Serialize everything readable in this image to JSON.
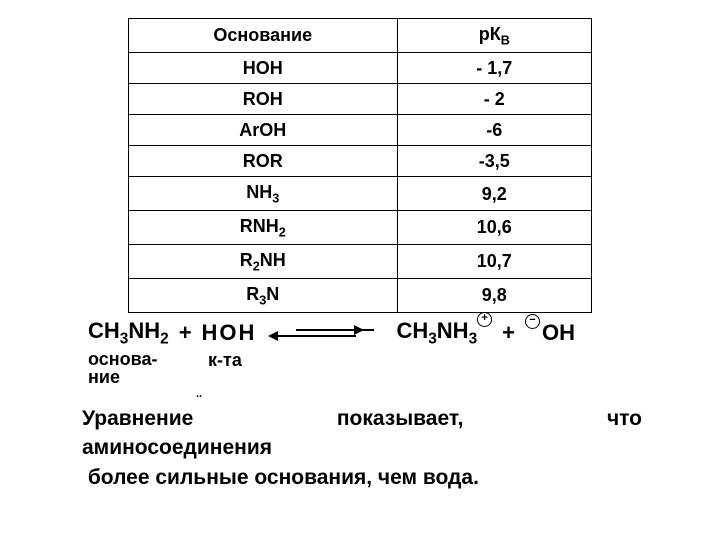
{
  "table": {
    "columns": [
      "Основание",
      "рКВ"
    ],
    "rows": [
      [
        "HOH",
        "- 1,7"
      ],
      [
        "ROH",
        "- 2"
      ],
      [
        "ArOH",
        "-6"
      ],
      [
        "ROR",
        "-3,5"
      ],
      [
        "NH3",
        "9,2"
      ],
      [
        "RNH2",
        "10,6"
      ],
      [
        "R2NH",
        "10,7"
      ],
      [
        "R3N",
        "9,8"
      ]
    ],
    "border_color": "#000000",
    "font_size": 18,
    "text_align": "center"
  },
  "equation": {
    "left1": "CH3NH2",
    "plus": "+",
    "left2": "HOH",
    "right1": "CH3NH3",
    "right2": "OH",
    "label1": "основа-\nние",
    "label2": "к-та",
    "charge_plus": "+",
    "charge_minus": "−"
  },
  "text": {
    "line1a": "Уравнение",
    "line1b": "показывает,",
    "line1c": "что",
    "line2": "аминосоединения",
    "line3": " более сильные основания, чем вода."
  },
  "dots": "..",
  "colors": {
    "background": "#ffffff",
    "text": "#000000"
  }
}
